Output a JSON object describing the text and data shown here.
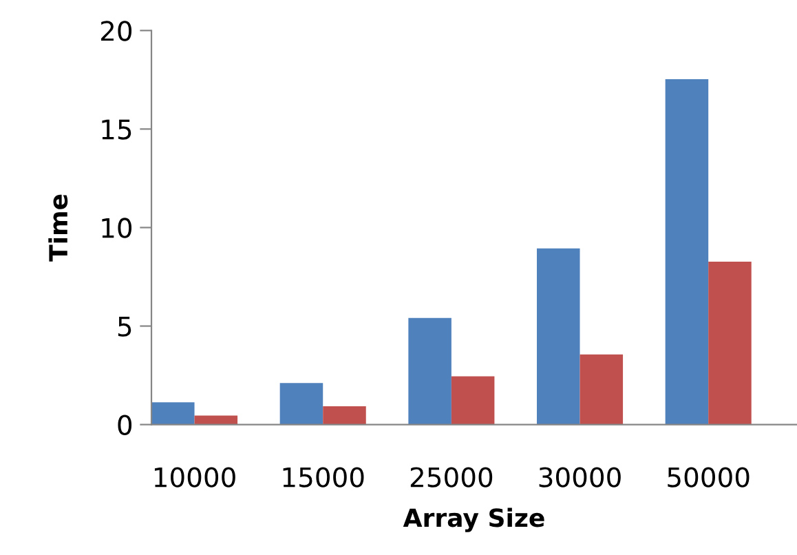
{
  "chart_data": {
    "type": "bar",
    "xlabel": "Array Size",
    "ylabel": "Time",
    "categories": [
      "10000",
      "15000",
      "25000",
      "30000",
      "50000"
    ],
    "series": [
      {
        "color": "#4f81bd",
        "values": [
          1.13,
          2.11,
          5.41,
          8.94,
          17.53
        ]
      },
      {
        "color": "#c0504d",
        "values": [
          0.46,
          0.93,
          2.45,
          3.56,
          8.27
        ]
      }
    ],
    "ylim": [
      0,
      20
    ],
    "yticks": [
      0,
      5,
      10,
      15,
      20
    ],
    "grid": false
  }
}
